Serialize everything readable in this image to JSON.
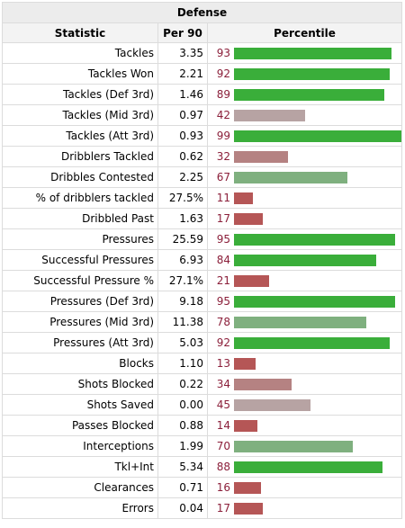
{
  "table": {
    "title": "Defense",
    "headers": {
      "statistic": "Statistic",
      "per90": "Per 90",
      "percentile": "Percentile"
    },
    "groups": [
      {
        "rows": [
          {
            "stat": "Tackles",
            "per90": "3.35",
            "pct": 93
          },
          {
            "stat": "Tackles Won",
            "per90": "2.21",
            "pct": 92
          },
          {
            "stat": "Tackles (Def 3rd)",
            "per90": "1.46",
            "pct": 89
          },
          {
            "stat": "Tackles (Mid 3rd)",
            "per90": "0.97",
            "pct": 42
          },
          {
            "stat": "Tackles (Att 3rd)",
            "per90": "0.93",
            "pct": 99
          }
        ]
      },
      {
        "rows": [
          {
            "stat": "Dribblers Tackled",
            "per90": "0.62",
            "pct": 32
          },
          {
            "stat": "Dribbles Contested",
            "per90": "2.25",
            "pct": 67
          },
          {
            "stat": "% of dribblers tackled",
            "per90": "27.5%",
            "pct": 11
          },
          {
            "stat": "Dribbled Past",
            "per90": "1.63",
            "pct": 17
          }
        ]
      },
      {
        "rows": [
          {
            "stat": "Pressures",
            "per90": "25.59",
            "pct": 95
          },
          {
            "stat": "Successful Pressures",
            "per90": "6.93",
            "pct": 84
          },
          {
            "stat": "Successful Pressure %",
            "per90": "27.1%",
            "pct": 21
          },
          {
            "stat": "Pressures (Def 3rd)",
            "per90": "9.18",
            "pct": 95
          },
          {
            "stat": "Pressures (Mid 3rd)",
            "per90": "11.38",
            "pct": 78
          },
          {
            "stat": "Pressures (Att 3rd)",
            "per90": "5.03",
            "pct": 92
          }
        ]
      },
      {
        "rows": [
          {
            "stat": "Blocks",
            "per90": "1.10",
            "pct": 13
          },
          {
            "stat": "Shots Blocked",
            "per90": "0.22",
            "pct": 34
          },
          {
            "stat": "Shots Saved",
            "per90": "0.00",
            "pct": 45
          },
          {
            "stat": "Passes Blocked",
            "per90": "0.88",
            "pct": 14
          }
        ]
      },
      {
        "rows": [
          {
            "stat": "Interceptions",
            "per90": "1.99",
            "pct": 70
          },
          {
            "stat": "Tkl+Int",
            "per90": "5.34",
            "pct": 88
          },
          {
            "stat": "Clearances",
            "per90": "0.71",
            "pct": 16
          },
          {
            "stat": "Errors",
            "per90": "0.04",
            "pct": 17
          }
        ]
      }
    ]
  },
  "colors": {
    "high": "#3aae3a",
    "mid_high": "#7fb07f",
    "mid": "#b7a3a3",
    "low_mid": "#b58282",
    "low": "#b55656"
  }
}
